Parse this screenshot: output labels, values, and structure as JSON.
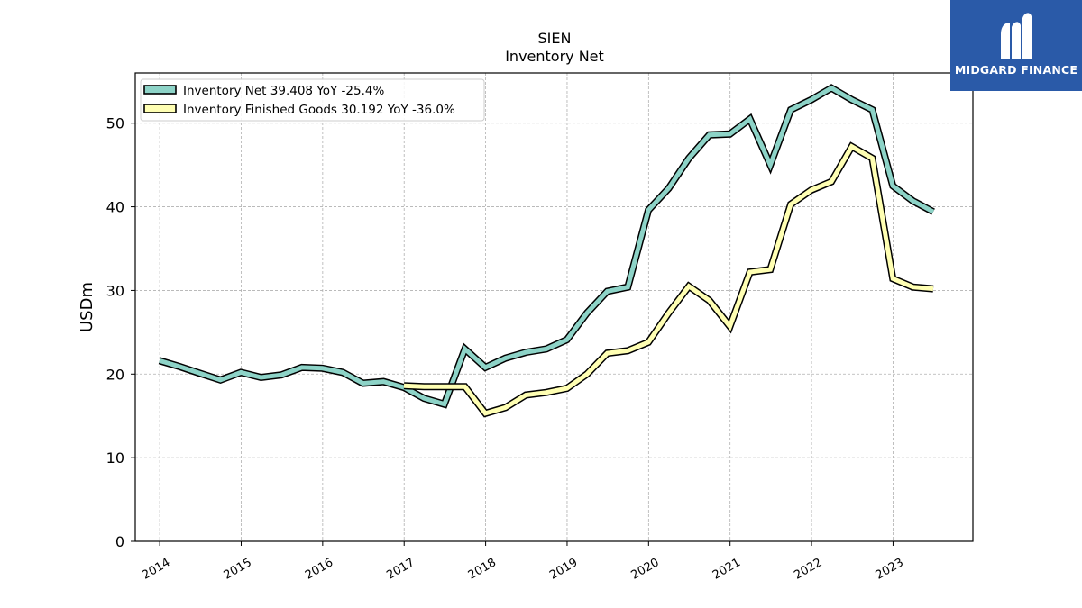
{
  "brand": {
    "name": "MIDGARD FINANCE",
    "color": "#2a5aa8"
  },
  "chart_data": {
    "type": "line",
    "title": "SIEN",
    "subtitle": "Inventory Net",
    "xlabel": "",
    "ylabel": "USDm",
    "ylim": [
      0,
      56
    ],
    "yticks": [
      0,
      10,
      20,
      30,
      40,
      50
    ],
    "xticks": [
      "2014",
      "2015",
      "2016",
      "2017",
      "2018",
      "2019",
      "2020",
      "2021",
      "2022",
      "2023"
    ],
    "grid": true,
    "legend_position": "top-left",
    "series": [
      {
        "name": "Inventory Net",
        "legend": "Inventory Net  39.408 YoY -25.4%",
        "color": "#8dd3c7",
        "points": [
          [
            "2013-12-31",
            21.6
          ],
          [
            "2014-03-31",
            20.9
          ],
          [
            "2014-06-30",
            20.1
          ],
          [
            "2014-09-30",
            19.3
          ],
          [
            "2014-12-31",
            20.2
          ],
          [
            "2015-03-31",
            19.6
          ],
          [
            "2015-06-30",
            19.9
          ],
          [
            "2015-09-30",
            20.8
          ],
          [
            "2015-12-31",
            20.7
          ],
          [
            "2016-03-31",
            20.2
          ],
          [
            "2016-06-30",
            18.9
          ],
          [
            "2016-09-30",
            19.1
          ],
          [
            "2016-12-31",
            18.4
          ],
          [
            "2017-03-31",
            17.1
          ],
          [
            "2017-06-30",
            16.4
          ],
          [
            "2017-09-30",
            23.0
          ],
          [
            "2017-12-31",
            20.8
          ],
          [
            "2018-03-31",
            21.9
          ],
          [
            "2018-06-30",
            22.6
          ],
          [
            "2018-09-30",
            23.0
          ],
          [
            "2018-12-31",
            24.1
          ],
          [
            "2019-03-31",
            27.3
          ],
          [
            "2019-06-30",
            29.9
          ],
          [
            "2019-09-30",
            30.4
          ],
          [
            "2019-12-31",
            39.6
          ],
          [
            "2020-03-31",
            42.2
          ],
          [
            "2020-06-30",
            45.8
          ],
          [
            "2020-09-30",
            48.6
          ],
          [
            "2020-12-31",
            48.7
          ],
          [
            "2021-03-31",
            50.5
          ],
          [
            "2021-06-30",
            45.0
          ],
          [
            "2021-09-30",
            51.6
          ],
          [
            "2021-12-31",
            52.8
          ],
          [
            "2022-03-31",
            54.2
          ],
          [
            "2022-06-30",
            52.8
          ],
          [
            "2022-09-30",
            51.6
          ],
          [
            "2022-12-31",
            42.5
          ],
          [
            "2023-03-31",
            40.7
          ],
          [
            "2023-06-30",
            39.4
          ]
        ]
      },
      {
        "name": "Inventory Finished Goods",
        "legend": "Inventory Finished Goods  30.192 YoY -36.0%",
        "color": "#ffffb3",
        "points": [
          [
            "2016-12-31",
            18.6
          ],
          [
            "2017-03-31",
            18.5
          ],
          [
            "2017-06-30",
            18.5
          ],
          [
            "2017-09-30",
            18.5
          ],
          [
            "2017-12-31",
            15.3
          ],
          [
            "2018-03-31",
            16.0
          ],
          [
            "2018-06-30",
            17.5
          ],
          [
            "2018-09-30",
            17.8
          ],
          [
            "2018-12-31",
            18.3
          ],
          [
            "2019-03-31",
            20.0
          ],
          [
            "2019-06-30",
            22.5
          ],
          [
            "2019-09-30",
            22.8
          ],
          [
            "2019-12-31",
            23.8
          ],
          [
            "2020-03-31",
            27.3
          ],
          [
            "2020-06-30",
            30.5
          ],
          [
            "2020-09-30",
            28.8
          ],
          [
            "2020-12-31",
            25.7
          ],
          [
            "2021-03-31",
            32.2
          ],
          [
            "2021-06-30",
            32.5
          ],
          [
            "2021-09-30",
            40.3
          ],
          [
            "2021-12-31",
            42.0
          ],
          [
            "2022-03-31",
            43.0
          ],
          [
            "2022-06-30",
            47.2
          ],
          [
            "2022-09-30",
            45.8
          ],
          [
            "2022-12-31",
            31.4
          ],
          [
            "2023-03-31",
            30.4
          ],
          [
            "2023-06-30",
            30.2
          ]
        ]
      }
    ]
  }
}
